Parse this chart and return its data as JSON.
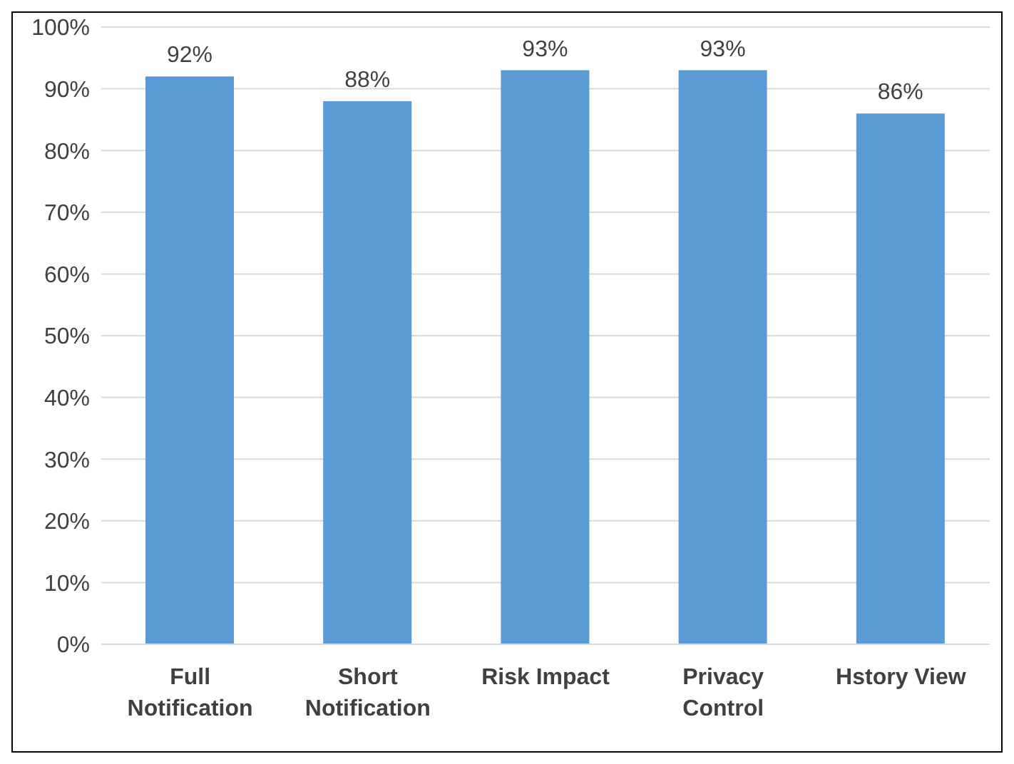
{
  "chart_data": {
    "type": "bar",
    "categories": [
      "Full Notification",
      "Short Notification",
      "Risk Impact",
      "Privacy Control",
      "Hstory View"
    ],
    "values": [
      92,
      88,
      93,
      93,
      86
    ],
    "value_labels": [
      "92%",
      "88%",
      "93%",
      "93%",
      "86%"
    ],
    "color": "#5b9bd5",
    "ylim": [
      0,
      100
    ],
    "yticks": [
      {
        "value": 0,
        "label": "0%"
      },
      {
        "value": 10,
        "label": "10%"
      },
      {
        "value": 20,
        "label": "20%"
      },
      {
        "value": 30,
        "label": "30%"
      },
      {
        "value": 40,
        "label": "40%"
      },
      {
        "value": 50,
        "label": "50%"
      },
      {
        "value": 60,
        "label": "60%"
      },
      {
        "value": 70,
        "label": "70%"
      },
      {
        "value": 80,
        "label": "80%"
      },
      {
        "value": 90,
        "label": "90%"
      },
      {
        "value": 100,
        "label": "100%"
      }
    ],
    "grid": "y"
  }
}
